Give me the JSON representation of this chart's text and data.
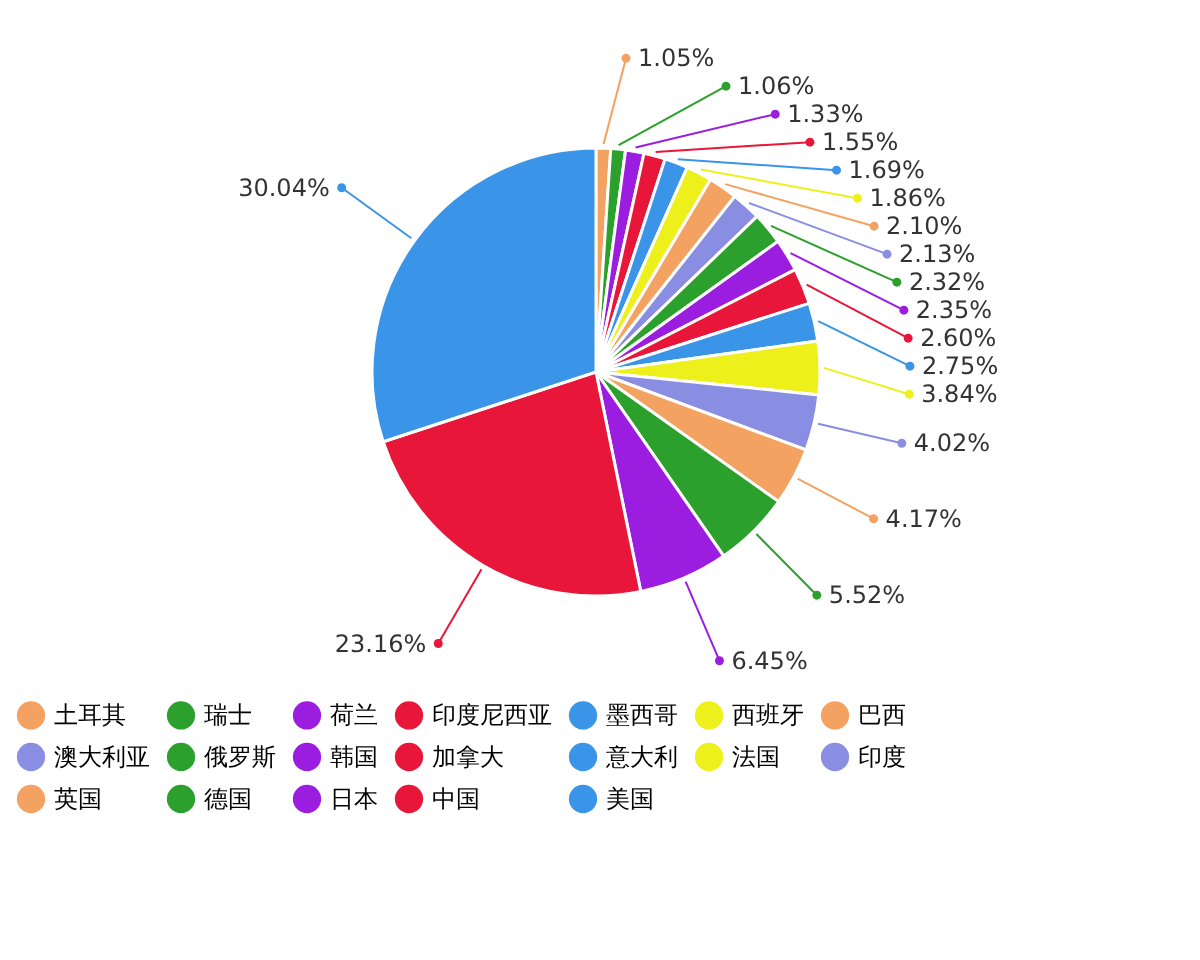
{
  "chart_data": {
    "type": "pie",
    "categories": [
      "土耳其",
      "瑞士",
      "荷兰",
      "印度尼西亚",
      "墨西哥",
      "西班牙",
      "巴西",
      "澳大利亚",
      "俄罗斯",
      "韩国",
      "加拿大",
      "意大利",
      "法国",
      "印度",
      "英国",
      "德国",
      "日本",
      "中国",
      "美国"
    ],
    "values": [
      1.05,
      1.06,
      1.33,
      1.55,
      1.69,
      1.86,
      2.1,
      2.13,
      2.32,
      2.35,
      2.6,
      2.75,
      3.84,
      4.02,
      4.17,
      5.52,
      6.45,
      23.16,
      30.04
    ],
    "value_labels": [
      "1.05%",
      "1.06%",
      "1.33%",
      "1.55%",
      "1.69%",
      "1.86%",
      "2.10%",
      "2.13%",
      "2.32%",
      "2.35%",
      "2.60%",
      "2.75%",
      "3.84%",
      "4.02%",
      "4.17%",
      "5.52%",
      "6.45%",
      "23.16%",
      "30.04%"
    ],
    "colors": [
      "#f4a261",
      "#2ca02c",
      "#9b1de0",
      "#e8173a",
      "#3a94e8",
      "#eef01c",
      "#f4a261",
      "#8a8ee2",
      "#2ca02c",
      "#9b1de0",
      "#e8173a",
      "#3a94e8",
      "#eef01c",
      "#8a8ee2",
      "#f4a261",
      "#2ca02c",
      "#9b1de0",
      "#e8173a",
      "#3a94e8"
    ],
    "legend": "bottom"
  }
}
